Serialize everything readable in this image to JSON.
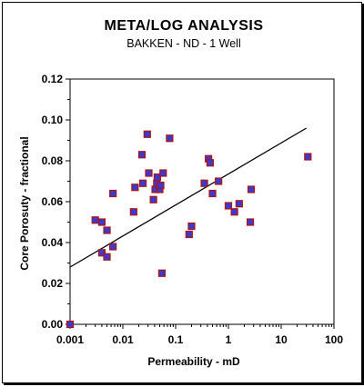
{
  "chart_data": {
    "type": "scatter",
    "title": "META/LOG ANALYSIS",
    "subtitle": "BAKKEN - ND - 1 Well",
    "xlabel": "Permeability - mD",
    "ylabel": "Core Porosuty - fractional",
    "x_scale": "log",
    "xlim": [
      0.001,
      100
    ],
    "ylim": [
      0.0,
      0.12
    ],
    "x_ticks": [
      "0.001",
      "0.01",
      "0.1",
      "1",
      "10",
      "100"
    ],
    "y_ticks": [
      "0.00",
      "0.02",
      "0.04",
      "0.06",
      "0.08",
      "0.10",
      "0.12"
    ],
    "grid": false,
    "legend": "none",
    "colors": {
      "marker_fill": "#3a3acc",
      "marker_edge": "#b01212",
      "trend_line": "#000000"
    },
    "series": [
      {
        "points": [
          [
            0.001,
            0.0
          ],
          [
            0.003,
            0.051
          ],
          [
            0.004,
            0.05
          ],
          [
            0.004,
            0.035
          ],
          [
            0.005,
            0.046
          ],
          [
            0.005,
            0.033
          ],
          [
            0.0065,
            0.038
          ],
          [
            0.0065,
            0.064
          ],
          [
            0.016,
            0.055
          ],
          [
            0.017,
            0.067
          ],
          [
            0.023,
            0.083
          ],
          [
            0.024,
            0.069
          ],
          [
            0.029,
            0.093
          ],
          [
            0.031,
            0.074
          ],
          [
            0.038,
            0.061
          ],
          [
            0.041,
            0.066
          ],
          [
            0.044,
            0.069
          ],
          [
            0.045,
            0.072
          ],
          [
            0.05,
            0.066
          ],
          [
            0.052,
            0.068
          ],
          [
            0.055,
            0.025
          ],
          [
            0.058,
            0.074
          ],
          [
            0.077,
            0.091
          ],
          [
            0.18,
            0.044
          ],
          [
            0.2,
            0.048
          ],
          [
            0.35,
            0.069
          ],
          [
            0.42,
            0.081
          ],
          [
            0.45,
            0.079
          ],
          [
            0.5,
            0.064
          ],
          [
            0.65,
            0.07
          ],
          [
            1.0,
            0.058
          ],
          [
            1.3,
            0.055
          ],
          [
            1.6,
            0.059
          ],
          [
            2.6,
            0.05
          ],
          [
            2.7,
            0.066
          ],
          [
            32,
            0.082
          ]
        ]
      }
    ],
    "trend_line": [
      [
        0.001,
        0.028
      ],
      [
        30,
        0.096
      ]
    ]
  }
}
